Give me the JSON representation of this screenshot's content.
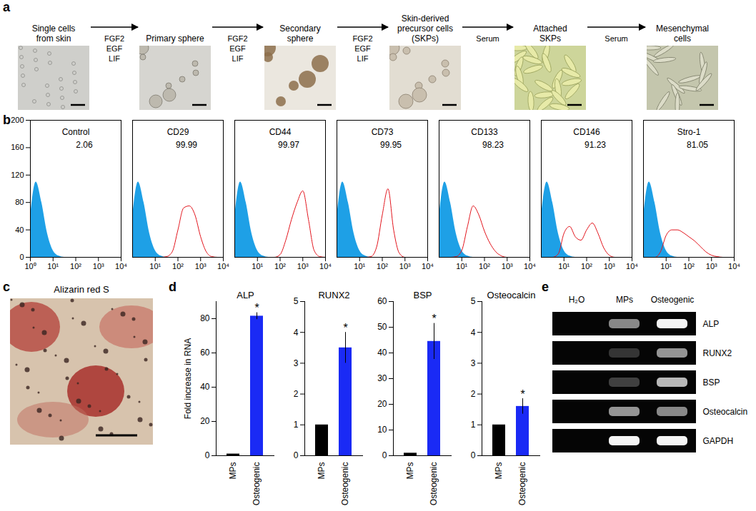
{
  "chart_data": [
    {
      "type": "area",
      "title": "Control",
      "annotation": "2.06",
      "x": [
        1,
        1.78,
        3.16,
        5.62,
        10,
        17.8,
        31.6,
        56.2,
        100,
        178,
        316,
        562,
        1000,
        1780,
        3160,
        5620,
        10000
      ],
      "series": [
        {
          "type": "area",
          "color": "#1ea0e6",
          "values": [
            60,
            110,
            80,
            35,
            10,
            2,
            0,
            0,
            0,
            0,
            0,
            0,
            0,
            0,
            0,
            0,
            0
          ]
        }
      ],
      "log": "x",
      "xlim": [
        1,
        10000
      ],
      "xticks": [
        {
          "value": 1,
          "label": "10⁰"
        },
        {
          "value": 10,
          "label": "10¹"
        },
        {
          "value": 100,
          "label": "10²"
        },
        {
          "value": 1000,
          "label": "10³"
        },
        {
          "value": 10000,
          "label": "10⁴"
        }
      ],
      "ylim": [
        0,
        200
      ],
      "yticks": [
        0,
        40,
        80,
        120,
        160,
        200
      ]
    },
    {
      "type": "area",
      "title": "CD29",
      "annotation": "99.99",
      "x": [
        1,
        1.78,
        3.16,
        5.62,
        10,
        17.8,
        31.6,
        56.2,
        100,
        178,
        316,
        562,
        1000,
        1780,
        3160,
        5620,
        10000
      ],
      "series": [
        {
          "type": "area",
          "color": "#1ea0e6",
          "values": [
            60,
            110,
            80,
            35,
            10,
            2,
            0,
            0,
            0,
            0,
            0,
            0,
            0,
            0,
            0,
            0,
            0
          ]
        },
        {
          "type": "line",
          "color": "#e3141c",
          "values": [
            0,
            0,
            0,
            0,
            0,
            0,
            1,
            8,
            40,
            72,
            75,
            62,
            30,
            8,
            1,
            0,
            0
          ]
        }
      ],
      "log": "x",
      "xlim": [
        1,
        10000
      ],
      "xticks": [
        {
          "value": 10,
          "label": "10¹"
        },
        {
          "value": 100,
          "label": "10²"
        },
        {
          "value": 1000,
          "label": "10³"
        },
        {
          "value": 10000,
          "label": "10⁴"
        }
      ],
      "ylim": [
        0,
        200
      ],
      "yticks": [
        0,
        40,
        80,
        120,
        160,
        200
      ],
      "tick_labels": "x"
    },
    {
      "type": "area",
      "title": "CD44",
      "annotation": "99.97",
      "x": [
        1,
        1.78,
        3.16,
        5.62,
        10,
        17.8,
        31.6,
        56.2,
        100,
        178,
        316,
        562,
        1000,
        1780,
        3160,
        5620,
        10000
      ],
      "series": [
        {
          "type": "area",
          "color": "#1ea0e6",
          "values": [
            60,
            110,
            80,
            35,
            10,
            2,
            0,
            0,
            0,
            0,
            0,
            0,
            0,
            0,
            0,
            0,
            0
          ]
        },
        {
          "type": "line",
          "color": "#e3141c",
          "values": [
            0,
            0,
            0,
            0,
            0,
            0,
            0,
            0,
            4,
            25,
            55,
            80,
            97,
            55,
            10,
            1,
            0
          ]
        }
      ],
      "log": "x",
      "xlim": [
        1,
        10000
      ],
      "xticks": [
        {
          "value": 10,
          "label": "10¹"
        },
        {
          "value": 100,
          "label": "10²"
        },
        {
          "value": 1000,
          "label": "10³"
        },
        {
          "value": 10000,
          "label": "10⁴"
        }
      ],
      "ylim": [
        0,
        200
      ],
      "yticks": [
        0,
        40,
        80,
        120,
        160,
        200
      ],
      "tick_labels": "x"
    },
    {
      "type": "area",
      "title": "CD73",
      "annotation": "99.95",
      "x": [
        1,
        1.78,
        3.16,
        5.62,
        10,
        17.8,
        31.6,
        56.2,
        100,
        178,
        316,
        562,
        1000,
        1780,
        3160,
        5620,
        10000
      ],
      "series": [
        {
          "type": "area",
          "color": "#1ea0e6",
          "values": [
            60,
            110,
            80,
            35,
            10,
            2,
            0,
            0,
            0,
            0,
            0,
            0,
            0,
            0,
            0,
            0,
            0
          ]
        },
        {
          "type": "line",
          "color": "#e3141c",
          "values": [
            0,
            0,
            0,
            0,
            0,
            0,
            1,
            15,
            62,
            100,
            40,
            6,
            0,
            0,
            0,
            0,
            0
          ]
        }
      ],
      "log": "x",
      "xlim": [
        1,
        10000
      ],
      "xticks": [
        {
          "value": 10,
          "label": "10¹"
        },
        {
          "value": 100,
          "label": "10²"
        },
        {
          "value": 1000,
          "label": "10³"
        },
        {
          "value": 10000,
          "label": "10⁴"
        }
      ],
      "ylim": [
        0,
        200
      ],
      "yticks": [
        0,
        40,
        80,
        120,
        160,
        200
      ],
      "tick_labels": "x"
    },
    {
      "type": "area",
      "title": "CD133",
      "annotation": "98.23",
      "x": [
        1,
        1.78,
        3.16,
        5.62,
        10,
        17.8,
        31.6,
        56.2,
        100,
        178,
        316,
        562,
        1000,
        1780,
        3160,
        5620,
        10000
      ],
      "series": [
        {
          "type": "area",
          "color": "#1ea0e6",
          "values": [
            60,
            110,
            80,
            35,
            10,
            2,
            0,
            0,
            0,
            0,
            0,
            0,
            0,
            0,
            0,
            0,
            0
          ]
        },
        {
          "type": "line",
          "color": "#e3141c",
          "values": [
            0,
            0,
            0,
            1,
            10,
            45,
            75,
            62,
            38,
            20,
            8,
            2,
            0,
            0,
            0,
            0,
            0
          ]
        }
      ],
      "log": "x",
      "xlim": [
        1,
        10000
      ],
      "xticks": [
        {
          "value": 10,
          "label": "10¹"
        },
        {
          "value": 100,
          "label": "10²"
        },
        {
          "value": 1000,
          "label": "10³"
        },
        {
          "value": 10000,
          "label": "10⁴"
        }
      ],
      "ylim": [
        0,
        200
      ],
      "yticks": [
        0,
        40,
        80,
        120,
        160,
        200
      ],
      "tick_labels": "x"
    },
    {
      "type": "area",
      "title": "CD146",
      "annotation": "91.23",
      "x": [
        1,
        1.78,
        3.16,
        5.62,
        10,
        17.8,
        31.6,
        56.2,
        100,
        178,
        316,
        562,
        1000,
        1780,
        3160,
        5620,
        10000
      ],
      "series": [
        {
          "type": "area",
          "color": "#1ea0e6",
          "values": [
            60,
            110,
            80,
            35,
            10,
            2,
            0,
            0,
            0,
            0,
            0,
            0,
            0,
            0,
            0,
            0,
            0
          ]
        },
        {
          "type": "line",
          "color": "#e3141c",
          "values": [
            0,
            0,
            0,
            5,
            35,
            45,
            30,
            25,
            40,
            50,
            35,
            14,
            3,
            0,
            0,
            0,
            0
          ]
        }
      ],
      "log": "x",
      "xlim": [
        1,
        10000
      ],
      "xticks": [
        {
          "value": 10,
          "label": "10¹"
        },
        {
          "value": 100,
          "label": "10²"
        },
        {
          "value": 1000,
          "label": "10³"
        },
        {
          "value": 10000,
          "label": "10⁴"
        }
      ],
      "ylim": [
        0,
        200
      ],
      "yticks": [
        0,
        40,
        80,
        120,
        160,
        200
      ],
      "tick_labels": "x"
    },
    {
      "type": "area",
      "title": "Stro-1",
      "annotation": "81.05",
      "x": [
        1,
        1.78,
        3.16,
        5.62,
        10,
        17.8,
        31.6,
        56.2,
        100,
        178,
        316,
        562,
        1000,
        1780,
        3160,
        5620,
        10000
      ],
      "series": [
        {
          "type": "area",
          "color": "#1ea0e6",
          "values": [
            60,
            110,
            80,
            35,
            10,
            2,
            0,
            0,
            0,
            0,
            0,
            0,
            0,
            0,
            0,
            0,
            0
          ]
        },
        {
          "type": "line",
          "color": "#e3141c",
          "values": [
            0,
            0,
            0,
            8,
            32,
            40,
            40,
            36,
            30,
            24,
            16,
            8,
            3,
            1,
            0,
            0,
            0
          ]
        }
      ],
      "log": "x",
      "xlim": [
        1,
        10000
      ],
      "xticks": [
        {
          "value": 10,
          "label": "10¹"
        },
        {
          "value": 100,
          "label": "10²"
        },
        {
          "value": 1000,
          "label": "10³"
        },
        {
          "value": 10000,
          "label": "10⁴"
        }
      ],
      "ylim": [
        0,
        200
      ],
      "yticks": [
        0,
        40,
        80,
        120,
        160,
        200
      ],
      "tick_labels": "x"
    },
    {
      "type": "bar",
      "title": "ALP",
      "ylabel": "Fold increase in RNA",
      "categories": [
        "MPs",
        "Osteogenic"
      ],
      "values": [
        1,
        81.5
      ],
      "errors": [
        0,
        2
      ],
      "colors": [
        "#000000",
        "#1a2af5"
      ],
      "ylim": [
        0,
        90
      ],
      "yticks": [
        0,
        20,
        40,
        60,
        80
      ],
      "annotations": [
        {
          "category": "Osteogenic",
          "label": "*"
        }
      ]
    },
    {
      "type": "bar",
      "title": "RUNX2",
      "categories": [
        "MPs",
        "Osteogenic"
      ],
      "values": [
        1,
        3.5
      ],
      "errors": [
        0,
        0.5
      ],
      "colors": [
        "#000000",
        "#1a2af5"
      ],
      "ylim": [
        0,
        5
      ],
      "yticks": [
        0,
        1,
        2,
        3,
        4,
        5
      ],
      "annotations": [
        {
          "category": "Osteogenic",
          "label": "*"
        }
      ]
    },
    {
      "type": "bar",
      "title": "BSP",
      "categories": [
        "MPs",
        "Osteogenic"
      ],
      "values": [
        1,
        44.5
      ],
      "errors": [
        0,
        7
      ],
      "colors": [
        "#000000",
        "#1a2af5"
      ],
      "ylim": [
        0,
        60
      ],
      "yticks": [
        0,
        10,
        20,
        30,
        40,
        50,
        60
      ],
      "annotations": [
        {
          "category": "Osteogenic",
          "label": "*"
        }
      ]
    },
    {
      "type": "bar",
      "title": "Osteocalcin",
      "categories": [
        "MPs",
        "Osteogenic"
      ],
      "values": [
        1,
        1.6
      ],
      "errors": [
        0,
        0.25
      ],
      "colors": [
        "#000000",
        "#1a2af5"
      ],
      "ylim": [
        0,
        5
      ],
      "yticks": [
        0,
        1,
        2,
        3,
        4,
        5
      ],
      "annotations": [
        {
          "category": "Osteogenic",
          "label": "*"
        }
      ]
    }
  ],
  "figure": {
    "panel_labels": [
      "a",
      "b",
      "c",
      "d",
      "e"
    ],
    "flow": {
      "steps": [
        [
          "Single cells",
          "from skin"
        ],
        [
          "Primary sphere"
        ],
        [
          "Secondary",
          "sphere"
        ],
        [
          "Skin-derived",
          "precursor cells",
          "(SKPs)"
        ],
        [
          "Attached",
          "SKPs"
        ],
        [
          "Mesenchymal",
          "cells"
        ]
      ],
      "arrow_labels": [
        [
          "FGF2",
          "EGF",
          "LIF"
        ],
        [
          "FGF2",
          "EGF",
          "LIF"
        ],
        [
          "FGF2",
          "EGF",
          "LIF"
        ],
        [
          "Serum"
        ],
        [
          "Serum"
        ]
      ]
    },
    "image_c": {
      "title": "Alizarin red S"
    },
    "gel": {
      "lanes": [
        "H₂O",
        "MPs",
        "Osteogenic"
      ],
      "genes": [
        "ALP",
        "RUNX2",
        "BSP",
        "Osteocalcin",
        "GAPDH"
      ],
      "intensity": [
        [
          0,
          0.55,
          1
        ],
        [
          0,
          0.2,
          0.6
        ],
        [
          0,
          0.25,
          0.75
        ],
        [
          0,
          0.6,
          0.55
        ],
        [
          0,
          1,
          1
        ]
      ]
    }
  }
}
